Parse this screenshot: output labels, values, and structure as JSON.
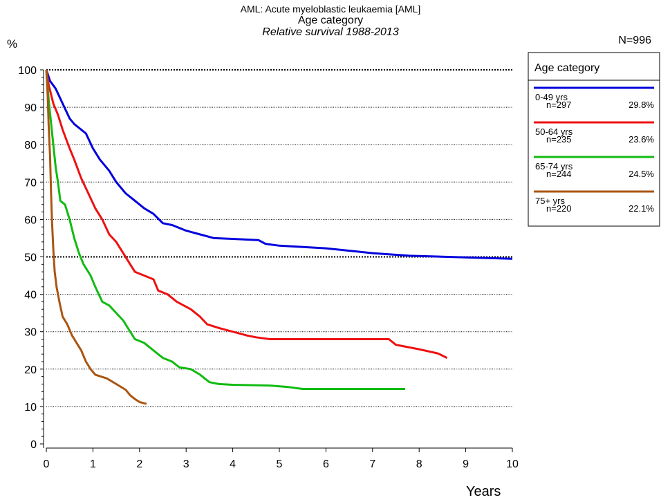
{
  "header": {
    "line1": "AML: Acute myeloblastic leukaemia [AML]",
    "line2": "Age category",
    "line3": "Relative survival 1988-2013",
    "y_unit": "%",
    "n_total": "N=996"
  },
  "chart_data": {
    "type": "line",
    "title": "AML: Acute myeloblastic leukaemia [AML]",
    "subtitle": "Age category — Relative survival 1988-2013",
    "xlabel": "Years",
    "ylabel": "%",
    "xlim": [
      0,
      10
    ],
    "ylim": [
      0,
      100
    ],
    "x_ticks": [
      0,
      1,
      2,
      3,
      4,
      5,
      6,
      7,
      8,
      9,
      10
    ],
    "y_ticks": [
      0,
      10,
      20,
      30,
      40,
      50,
      60,
      70,
      80,
      90,
      100
    ],
    "grid": "dotted horizontal at 10-unit steps; heavier at 50 and 100",
    "legend_position": "top-right",
    "legend_title": "Age category",
    "series": [
      {
        "name": "0-49 yrs",
        "n": "n=297",
        "pct": "29.8%",
        "color": "#0000dd",
        "points": [
          [
            0,
            100
          ],
          [
            0.08,
            97
          ],
          [
            0.2,
            95
          ],
          [
            0.35,
            91
          ],
          [
            0.5,
            87
          ],
          [
            0.6,
            85.5
          ],
          [
            0.85,
            83
          ],
          [
            1.0,
            79
          ],
          [
            1.15,
            76
          ],
          [
            1.35,
            73
          ],
          [
            1.5,
            70
          ],
          [
            1.7,
            67
          ],
          [
            1.9,
            65
          ],
          [
            2.1,
            63
          ],
          [
            2.3,
            61.5
          ],
          [
            2.5,
            59
          ],
          [
            2.7,
            58.5
          ],
          [
            3.0,
            57
          ],
          [
            3.3,
            56
          ],
          [
            3.6,
            55
          ],
          [
            4.0,
            54.8
          ],
          [
            4.55,
            54.5
          ],
          [
            4.7,
            53.5
          ],
          [
            5.0,
            53
          ],
          [
            6.0,
            52.3
          ],
          [
            7.0,
            51
          ],
          [
            7.8,
            50.3
          ],
          [
            10.0,
            49.5
          ]
        ]
      },
      {
        "name": "50-64 yrs",
        "n": "n=235",
        "pct": "23.6%",
        "color": "#ee1111",
        "points": [
          [
            0,
            100
          ],
          [
            0.05,
            96
          ],
          [
            0.15,
            91
          ],
          [
            0.25,
            88
          ],
          [
            0.35,
            84
          ],
          [
            0.5,
            79
          ],
          [
            0.6,
            76
          ],
          [
            0.75,
            71
          ],
          [
            0.9,
            67
          ],
          [
            1.05,
            63
          ],
          [
            1.2,
            60
          ],
          [
            1.35,
            56
          ],
          [
            1.5,
            54
          ],
          [
            1.65,
            51
          ],
          [
            1.8,
            48
          ],
          [
            1.9,
            46
          ],
          [
            2.1,
            45
          ],
          [
            2.3,
            44
          ],
          [
            2.4,
            41
          ],
          [
            2.6,
            40
          ],
          [
            2.8,
            38
          ],
          [
            3.1,
            36
          ],
          [
            3.3,
            34
          ],
          [
            3.45,
            32
          ],
          [
            3.7,
            31
          ],
          [
            4.0,
            30
          ],
          [
            4.3,
            29
          ],
          [
            4.5,
            28.5
          ],
          [
            4.8,
            28
          ],
          [
            5.5,
            28
          ],
          [
            6.5,
            28
          ],
          [
            7.35,
            28
          ],
          [
            7.5,
            26.5
          ],
          [
            8.0,
            25.3
          ],
          [
            8.4,
            24.2
          ],
          [
            8.6,
            23
          ]
        ]
      },
      {
        "name": "65-74 yrs",
        "n": "n=244",
        "pct": "24.5%",
        "color": "#11bb11",
        "points": [
          [
            0,
            100
          ],
          [
            0.05,
            92
          ],
          [
            0.1,
            86
          ],
          [
            0.15,
            80
          ],
          [
            0.2,
            74
          ],
          [
            0.25,
            70
          ],
          [
            0.3,
            65
          ],
          [
            0.4,
            64
          ],
          [
            0.5,
            60
          ],
          [
            0.6,
            55
          ],
          [
            0.7,
            51
          ],
          [
            0.8,
            48
          ],
          [
            0.95,
            45
          ],
          [
            1.05,
            42
          ],
          [
            1.2,
            38
          ],
          [
            1.35,
            37
          ],
          [
            1.5,
            35
          ],
          [
            1.65,
            33
          ],
          [
            1.8,
            30
          ],
          [
            1.9,
            28
          ],
          [
            2.1,
            27
          ],
          [
            2.3,
            25
          ],
          [
            2.5,
            23
          ],
          [
            2.7,
            22
          ],
          [
            2.85,
            20.5
          ],
          [
            3.1,
            20
          ],
          [
            3.3,
            18.5
          ],
          [
            3.5,
            16.5
          ],
          [
            3.7,
            16
          ],
          [
            4.0,
            15.8
          ],
          [
            4.8,
            15.6
          ],
          [
            5.2,
            15.2
          ],
          [
            5.5,
            14.7
          ],
          [
            6.0,
            14.7
          ],
          [
            7.0,
            14.7
          ],
          [
            7.7,
            14.7
          ]
        ]
      },
      {
        "name": "75+ yrs",
        "n": "n=220",
        "pct": "22.1%",
        "color": "#aa5511",
        "points": [
          [
            0,
            100
          ],
          [
            0.03,
            93
          ],
          [
            0.05,
            85
          ],
          [
            0.08,
            77
          ],
          [
            0.1,
            68
          ],
          [
            0.12,
            60
          ],
          [
            0.15,
            52
          ],
          [
            0.18,
            46
          ],
          [
            0.22,
            42
          ],
          [
            0.28,
            38
          ],
          [
            0.35,
            34
          ],
          [
            0.45,
            32
          ],
          [
            0.55,
            29
          ],
          [
            0.65,
            27
          ],
          [
            0.75,
            25
          ],
          [
            0.85,
            22
          ],
          [
            0.95,
            20
          ],
          [
            1.05,
            18.5
          ],
          [
            1.3,
            17.5
          ],
          [
            1.5,
            16
          ],
          [
            1.7,
            14.5
          ],
          [
            1.8,
            13
          ],
          [
            1.9,
            12
          ],
          [
            2.0,
            11.2
          ],
          [
            2.15,
            10.7
          ]
        ]
      }
    ]
  }
}
